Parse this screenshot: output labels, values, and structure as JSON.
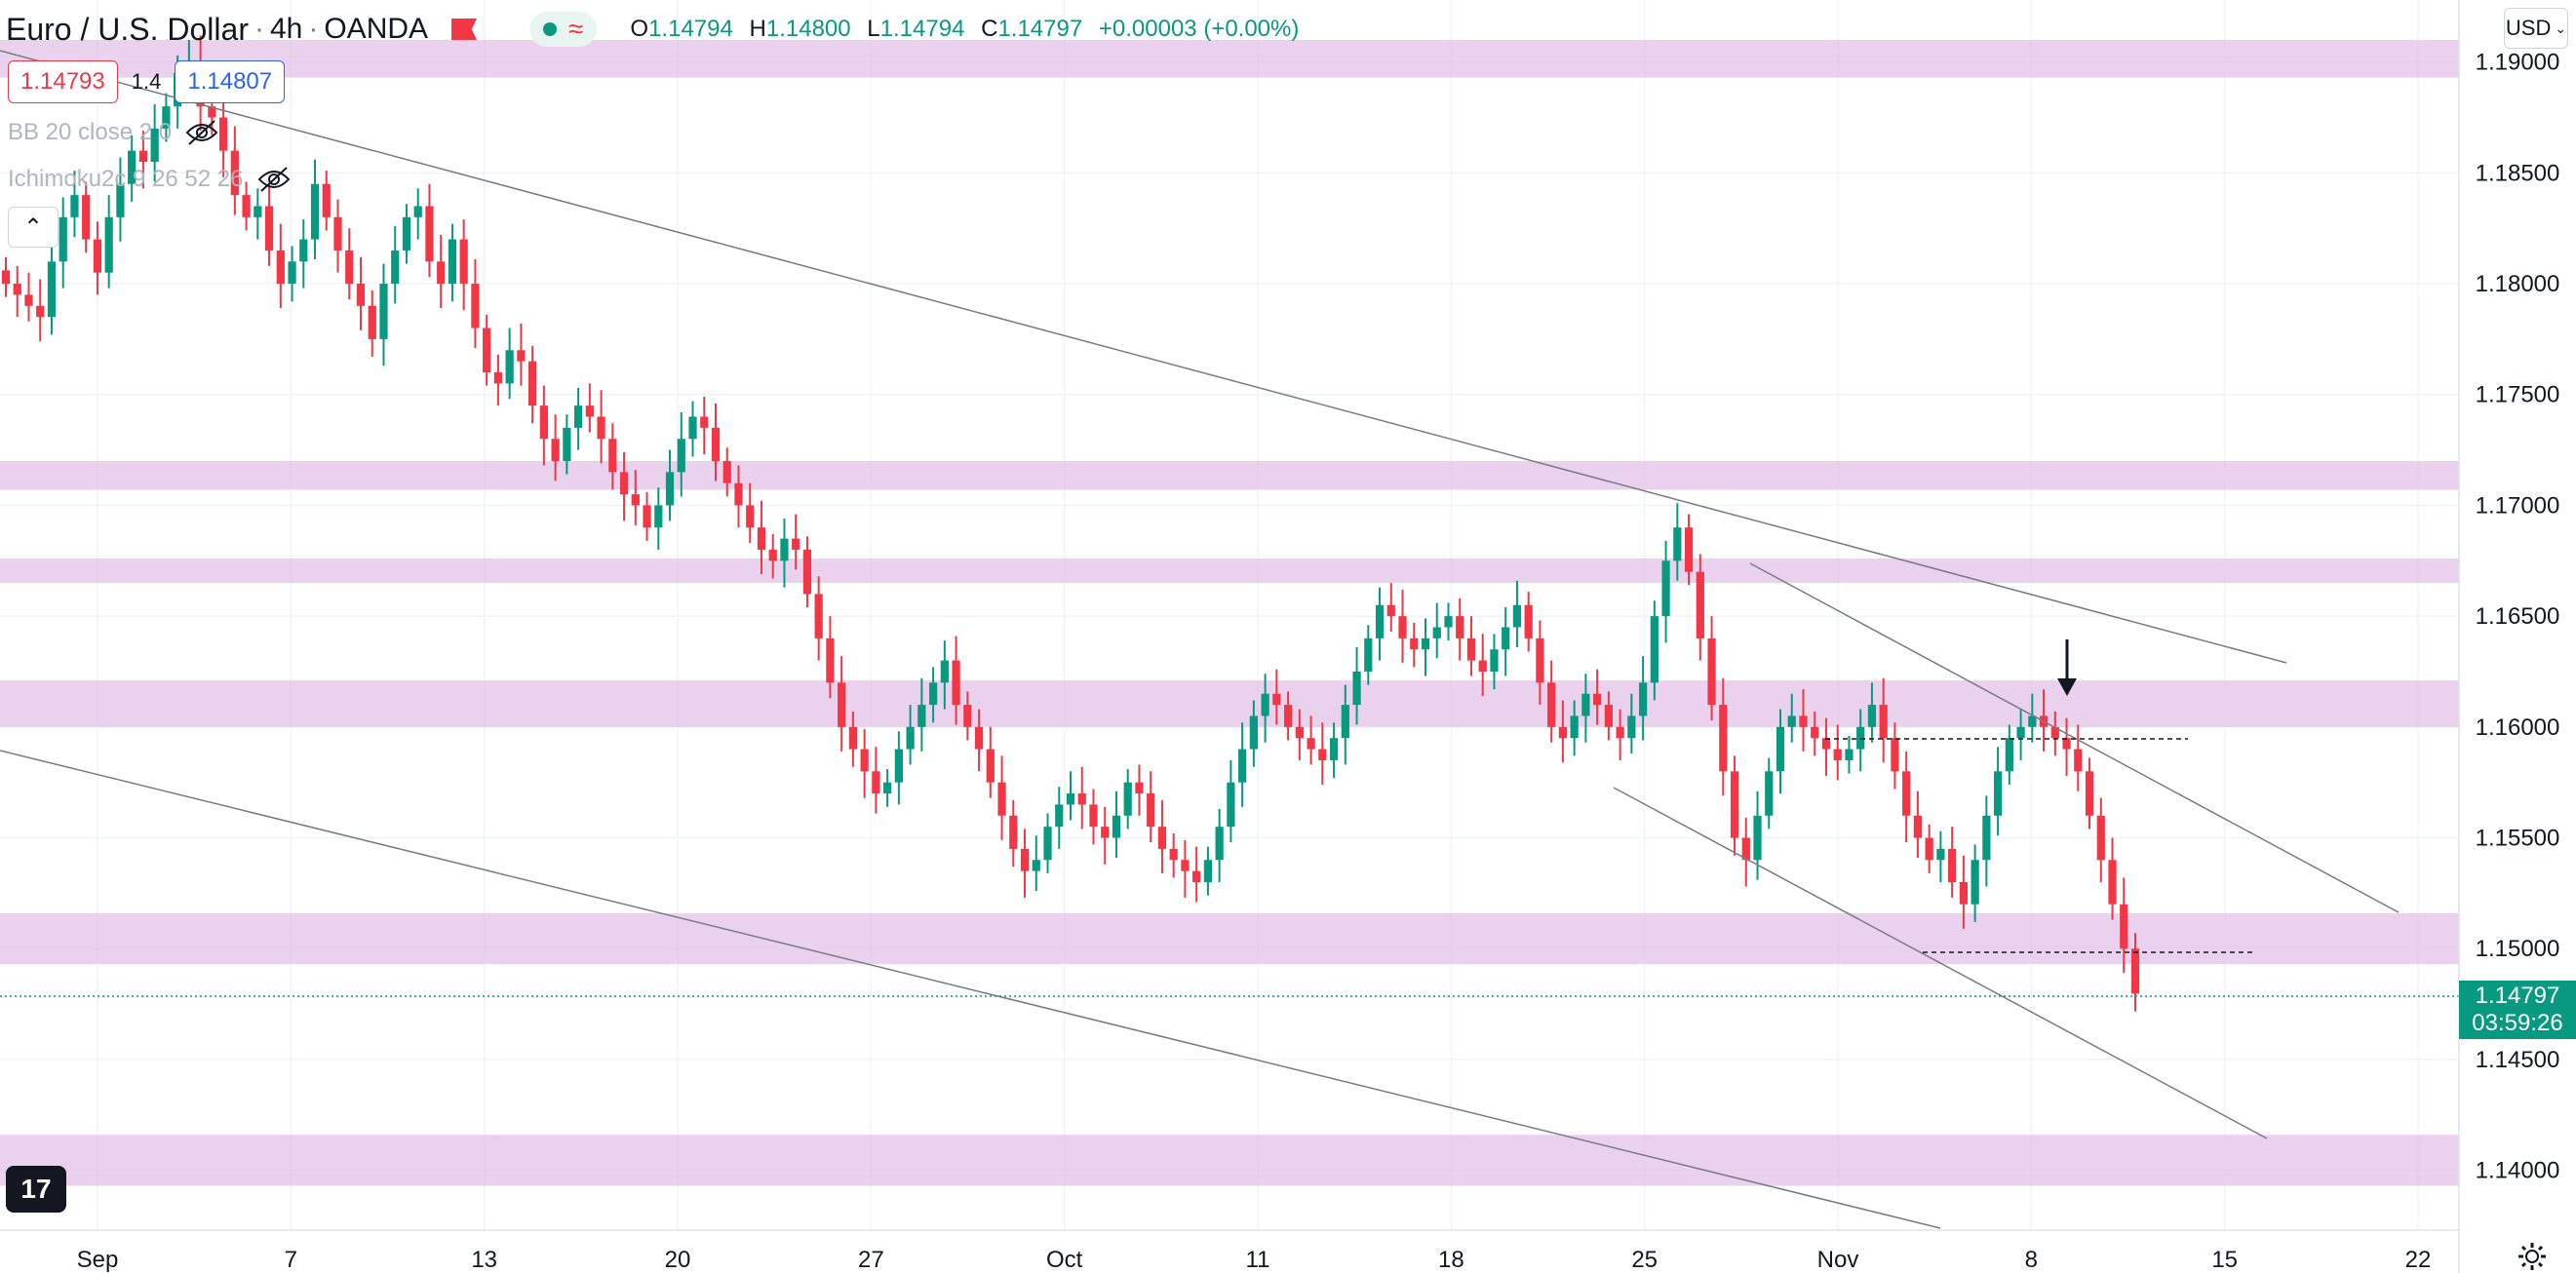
{
  "header": {
    "symbol": "Euro / U.S. Dollar",
    "interval": "4h",
    "exchange": "OANDA",
    "ohlc": {
      "o_label": "O",
      "o": "1.14794",
      "h_label": "H",
      "h": "1.14800",
      "l_label": "L",
      "l": "1.14794",
      "c_label": "C",
      "c": "1.14797",
      "change": "+0.00003 (+0.00%)"
    }
  },
  "trade": {
    "sell_price": "1.14793",
    "spread": "1.4",
    "buy_price": "1.14807"
  },
  "indicators": [
    {
      "label": "BB 20 close 2 0"
    },
    {
      "label": "Ichimoku2c 9 26 52 26"
    }
  ],
  "currency_selector": "USD",
  "last_price": {
    "price": "1.14797",
    "countdown": "03:59:26"
  },
  "colors": {
    "up": "#089981",
    "down": "#f23645",
    "zone": "#e1bee7",
    "trendline": "#787b86",
    "grid": "#f0f3fa",
    "accent": "#2962ff"
  },
  "icons": [
    "flag-icon",
    "eye-off-icon",
    "chevron-up-icon",
    "tradingview-logo-icon",
    "gear-icon",
    "down-arrow-icon"
  ],
  "chart_data": {
    "type": "candlestick",
    "series_desc": "EUR/USD 4h",
    "y_axis_ticks": [
      "1.19000",
      "1.18500",
      "1.18000",
      "1.17500",
      "1.17000",
      "1.16500",
      "1.16000",
      "1.15500",
      "1.15000",
      "1.14500",
      "1.14000"
    ],
    "x_axis_ticks": [
      "Sep",
      "7",
      "13",
      "20",
      "27",
      "Oct",
      "11",
      "18",
      "25",
      "Nov",
      "8",
      "15",
      "22"
    ],
    "ylim": [
      1.1373,
      1.1928
    ],
    "zones": [
      [
        1.1893,
        1.191
      ],
      [
        1.1707,
        1.172
      ],
      [
        1.1665,
        1.1676
      ],
      [
        1.16,
        1.1621
      ],
      [
        1.1493,
        1.1516
      ],
      [
        1.1393,
        1.1416
      ]
    ],
    "last_price": 1.14797,
    "closes": [
      1.18,
      1.1795,
      1.179,
      1.1785,
      1.181,
      1.183,
      1.184,
      1.182,
      1.1805,
      1.183,
      1.1845,
      1.186,
      1.1855,
      1.187,
      1.188,
      1.1895,
      1.19,
      1.188,
      1.1875,
      1.186,
      1.184,
      1.183,
      1.1835,
      1.1815,
      1.18,
      1.181,
      1.182,
      1.1845,
      1.183,
      1.1815,
      1.18,
      1.179,
      1.1775,
      1.18,
      1.1815,
      1.183,
      1.1835,
      1.181,
      1.18,
      1.182,
      1.18,
      1.178,
      1.176,
      1.1755,
      1.177,
      1.1765,
      1.1745,
      1.173,
      1.172,
      1.1735,
      1.1745,
      1.174,
      1.173,
      1.1715,
      1.1705,
      1.17,
      1.169,
      1.17,
      1.1715,
      1.173,
      1.174,
      1.1735,
      1.172,
      1.171,
      1.17,
      1.169,
      1.168,
      1.1675,
      1.1685,
      1.168,
      1.166,
      1.164,
      1.162,
      1.16,
      1.159,
      1.158,
      1.157,
      1.1575,
      1.159,
      1.16,
      1.161,
      1.162,
      1.163,
      1.161,
      1.16,
      1.159,
      1.1575,
      1.156,
      1.1545,
      1.1535,
      1.154,
      1.1555,
      1.1565,
      1.157,
      1.1565,
      1.1555,
      1.155,
      1.156,
      1.1575,
      1.157,
      1.1555,
      1.1545,
      1.154,
      1.1535,
      1.153,
      1.154,
      1.1555,
      1.1575,
      1.159,
      1.1605,
      1.1615,
      1.161,
      1.16,
      1.1595,
      1.159,
      1.1585,
      1.1595,
      1.161,
      1.1625,
      1.164,
      1.1655,
      1.165,
      1.164,
      1.1635,
      1.164,
      1.1645,
      1.165,
      1.164,
      1.163,
      1.1625,
      1.1635,
      1.1645,
      1.1655,
      1.164,
      1.162,
      1.16,
      1.1595,
      1.1605,
      1.1615,
      1.161,
      1.16,
      1.1595,
      1.1605,
      1.162,
      1.165,
      1.1675,
      1.169,
      1.167,
      1.164,
      1.161,
      1.158,
      1.155,
      1.154,
      1.156,
      1.158,
      1.16,
      1.1605,
      1.16,
      1.1595,
      1.159,
      1.1585,
      1.159,
      1.16,
      1.161,
      1.1595,
      1.158,
      1.156,
      1.155,
      1.154,
      1.1545,
      1.153,
      1.152,
      1.154,
      1.156,
      1.158,
      1.1595,
      1.16,
      1.1605,
      1.16,
      1.1595,
      1.159,
      1.158,
      1.156,
      1.154,
      1.152,
      1.15,
      1.14797
    ]
  }
}
